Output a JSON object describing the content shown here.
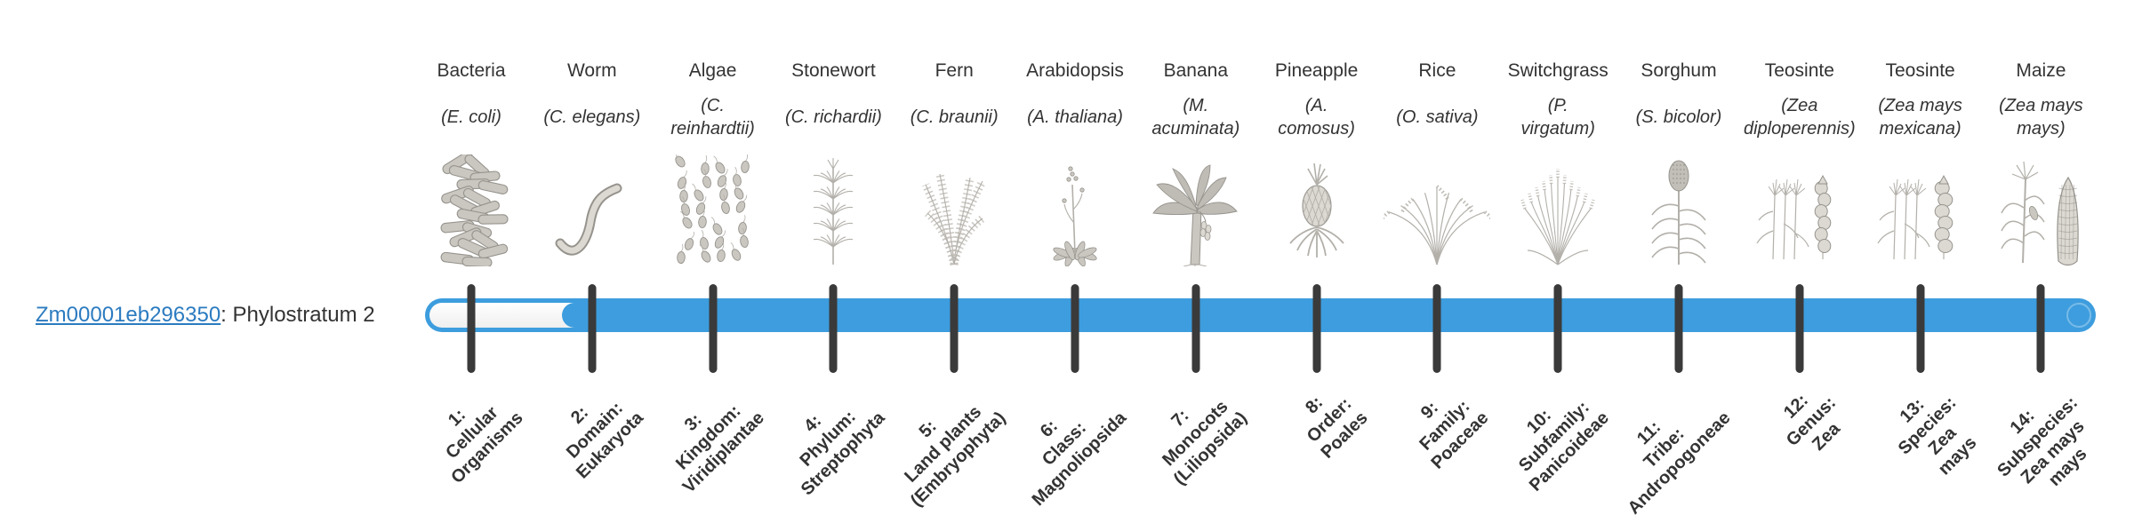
{
  "gene": {
    "id": "Zm00001eb296350",
    "rest": ": Phylostratum 2",
    "phylostratum_value": "2"
  },
  "colors": {
    "bar": "#3d9dde",
    "tick": "#3a3a3a",
    "link": "#2b7bc0",
    "text": "#333333"
  },
  "taxa": [
    {
      "common": "Bacteria",
      "species_lines": [
        "(E. coli)"
      ],
      "icon": "bacteria-icon",
      "stratum_lines": [
        "1:",
        "Cellular",
        "Organisms"
      ]
    },
    {
      "common": "Worm",
      "species_lines": [
        "(C. elegans)"
      ],
      "icon": "worm-icon",
      "stratum_lines": [
        "2:",
        "Domain:",
        "Eukaryota"
      ]
    },
    {
      "common": "Algae",
      "species_lines": [
        "(C.",
        "reinhardtii)"
      ],
      "icon": "algae-icon",
      "stratum_lines": [
        "3:",
        "Kingdom:",
        "Viridiplantae"
      ]
    },
    {
      "common": "Stonewort",
      "species_lines": [
        "(C. richardii)"
      ],
      "icon": "stonewort-icon",
      "stratum_lines": [
        "4:",
        "Phylum:",
        "Streptophyta"
      ]
    },
    {
      "common": "Fern",
      "species_lines": [
        "(C. braunii)"
      ],
      "icon": "fern-icon",
      "stratum_lines": [
        "5:",
        "Land plants",
        "(Embryophyta)"
      ]
    },
    {
      "common": "Arabidopsis",
      "species_lines": [
        "(A. thaliana)"
      ],
      "icon": "arabidopsis-icon",
      "stratum_lines": [
        "6:",
        "Class:",
        "Magnoliopsida"
      ]
    },
    {
      "common": "Banana",
      "species_lines": [
        "(M.",
        "acuminata)"
      ],
      "icon": "banana-icon",
      "stratum_lines": [
        "7:",
        "Monocots",
        "(Liliopsida)"
      ]
    },
    {
      "common": "Pineapple",
      "species_lines": [
        "(A.",
        "comosus)"
      ],
      "icon": "pineapple-icon",
      "stratum_lines": [
        "8:",
        "Order:",
        "Poales"
      ]
    },
    {
      "common": "Rice",
      "species_lines": [
        "(O. sativa)"
      ],
      "icon": "rice-icon",
      "stratum_lines": [
        "9:",
        "Family:",
        "Poaceae"
      ]
    },
    {
      "common": "Switchgrass",
      "species_lines": [
        "(P.",
        "virgatum)"
      ],
      "icon": "switchgrass-icon",
      "stratum_lines": [
        "10:",
        "Subfamily:",
        "Panicoideae"
      ]
    },
    {
      "common": "Sorghum",
      "species_lines": [
        "(S. bicolor)"
      ],
      "icon": "sorghum-icon",
      "stratum_lines": [
        "11:",
        "Tribe:",
        "Andropogoneae"
      ]
    },
    {
      "common": "Teosinte",
      "species_lines": [
        "(Zea",
        "diploperennis)"
      ],
      "icon": "teosinte-diploperennis-icon",
      "stratum_lines": [
        "12:",
        "Genus:",
        "Zea"
      ]
    },
    {
      "common": "Teosinte",
      "species_lines": [
        "(Zea mays",
        "mexicana)"
      ],
      "icon": "teosinte-mexicana-icon",
      "stratum_lines": [
        "13:",
        "Species:",
        "Zea",
        "mays"
      ]
    },
    {
      "common": "Maize",
      "species_lines": [
        "(Zea mays",
        "mays)"
      ],
      "icon": "maize-icon",
      "stratum_lines": [
        "14:",
        "Subspecies:",
        "Zea mays",
        "mays"
      ]
    }
  ]
}
